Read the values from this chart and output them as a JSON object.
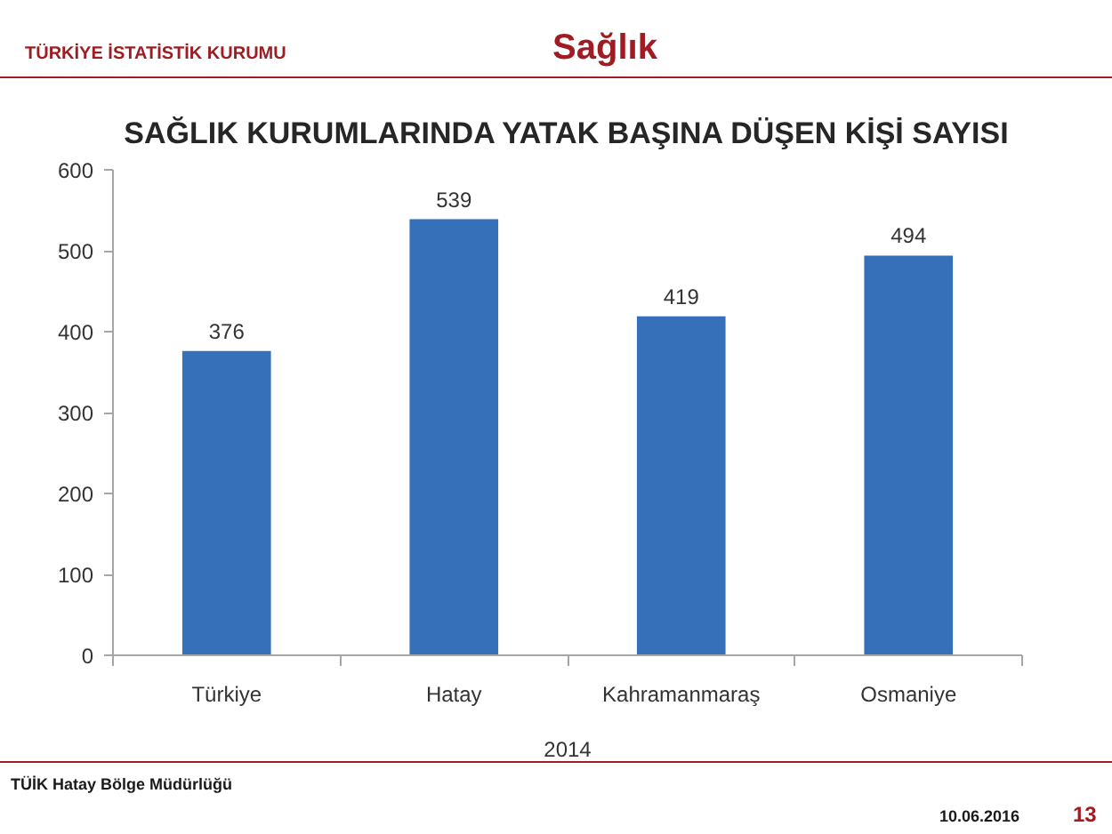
{
  "chart_data": {
    "type": "bar",
    "title": "SAĞLIK KURUMLARINDA YATAK BAŞINA DÜŞEN KİŞİ SAYISI",
    "xlabel": "2014",
    "categories": [
      "Türkiye",
      "Hatay",
      "Kahramanmaraş",
      "Osmaniye"
    ],
    "values": [
      376,
      539,
      419,
      494
    ],
    "color": "#3670b9",
    "ylim": [
      0,
      600
    ],
    "yticks": [
      0,
      100,
      200,
      300,
      400,
      500,
      600
    ],
    "data_labels": true,
    "grid": false,
    "annotations": [
      "TÜRKİYE İSTATİSTİK KURUMU",
      "Sağlık",
      "TÜİK Hatay Bölge Müdürlüğü",
      "10.06.2016",
      "13"
    ]
  }
}
